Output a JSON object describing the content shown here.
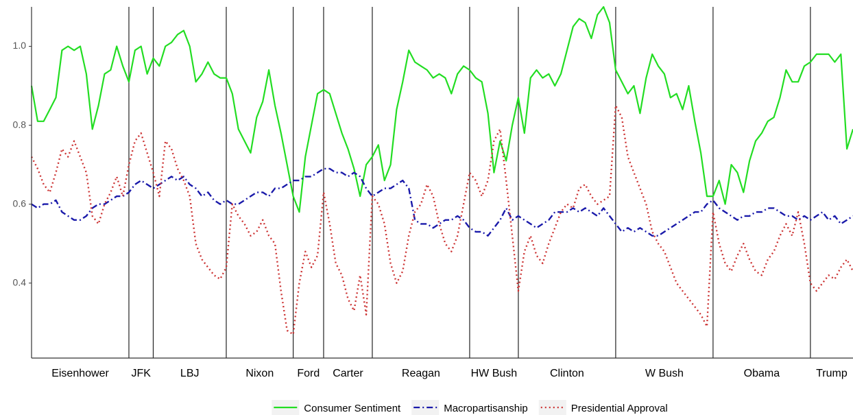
{
  "chart_data": {
    "type": "line",
    "categories": [
      null,
      null,
      null,
      null,
      null,
      null,
      null,
      null,
      null,
      null,
      null,
      null,
      null,
      null,
      null,
      null,
      null,
      null,
      null,
      null,
      null,
      null,
      null,
      null,
      null,
      null,
      null,
      null,
      null,
      null,
      null,
      null,
      null,
      null,
      null,
      null,
      null,
      null,
      null,
      null,
      null,
      null,
      null,
      null,
      null,
      null,
      null,
      null,
      null,
      null,
      null,
      null,
      null,
      null,
      null,
      null,
      null,
      null,
      null,
      null,
      null,
      null,
      null,
      null,
      null,
      null,
      null,
      null,
      null,
      null,
      null,
      null,
      null,
      null,
      null,
      null,
      null,
      null,
      null,
      null,
      null,
      null,
      null,
      null,
      null,
      null,
      null,
      null,
      null,
      null,
      null,
      null,
      null,
      null,
      null,
      null,
      null,
      null,
      null,
      null,
      null,
      null,
      null,
      null,
      null,
      null,
      null,
      null,
      null,
      null,
      null,
      null,
      null,
      null,
      null,
      null,
      null,
      null,
      null,
      null,
      null,
      null,
      null,
      null,
      null,
      null,
      null,
      null,
      null,
      null,
      null,
      null,
      null,
      null,
      null,
      null
    ],
    "eras": [
      {
        "name": "Eisenhower",
        "start": 0
      },
      {
        "name": "JFK",
        "start": 16
      },
      {
        "name": "LBJ",
        "start": 20
      },
      {
        "name": "Nixon",
        "start": 32
      },
      {
        "name": "Ford",
        "start": 43
      },
      {
        "name": "Carter",
        "start": 48
      },
      {
        "name": "Reagan",
        "start": 56
      },
      {
        "name": "HW Bush",
        "start": 72
      },
      {
        "name": "Clinton",
        "start": 80
      },
      {
        "name": "W Bush",
        "start": 96
      },
      {
        "name": "Obama",
        "start": 112
      },
      {
        "name": "Trump",
        "start": 128
      }
    ],
    "ylim": [
      0.21,
      1.1
    ],
    "yticks": [
      0.4,
      0.6,
      0.8,
      {
        "value": 1.0,
        "label": "1.0"
      }
    ],
    "legend": "bottom",
    "series": [
      {
        "name": "Consumer Sentiment",
        "color": "#22dd22",
        "linestyle": "solid",
        "values": [
          0.9,
          0.81,
          0.81,
          0.84,
          0.87,
          0.99,
          1.0,
          0.99,
          1.0,
          0.93,
          0.79,
          0.85,
          0.93,
          0.94,
          1.0,
          0.95,
          0.91,
          0.99,
          1.0,
          0.93,
          0.97,
          0.95,
          1.0,
          1.01,
          1.03,
          1.04,
          1.0,
          0.91,
          0.93,
          0.96,
          0.93,
          0.92,
          0.92,
          0.88,
          0.79,
          0.76,
          0.73,
          0.82,
          0.86,
          0.94,
          0.85,
          0.78,
          0.7,
          0.62,
          0.58,
          0.72,
          0.8,
          0.88,
          0.89,
          0.88,
          0.83,
          0.78,
          0.74,
          0.69,
          0.62,
          0.7,
          0.72,
          0.75,
          0.66,
          0.7,
          0.84,
          0.91,
          0.99,
          0.96,
          0.95,
          0.94,
          0.92,
          0.93,
          0.92,
          0.88,
          0.93,
          0.95,
          0.94,
          0.92,
          0.91,
          0.83,
          0.68,
          0.76,
          0.71,
          0.8,
          0.87,
          0.78,
          0.92,
          0.94,
          0.92,
          0.93,
          0.9,
          0.93,
          0.99,
          1.05,
          1.07,
          1.06,
          1.02,
          1.08,
          1.1,
          1.06,
          0.94,
          0.91,
          0.88,
          0.9,
          0.83,
          0.92,
          0.98,
          0.95,
          0.93,
          0.87,
          0.88,
          0.84,
          0.9,
          0.81,
          0.73,
          0.62,
          0.62,
          0.66,
          0.6,
          0.7,
          0.68,
          0.63,
          0.71,
          0.76,
          0.78,
          0.81,
          0.82,
          0.87,
          0.94,
          0.91,
          0.91,
          0.95,
          0.96,
          0.98,
          0.98,
          0.98,
          0.96,
          0.98,
          0.74,
          0.79
        ]
      },
      {
        "name": "Macropartisanship",
        "color": "#1a1aaa",
        "linestyle": "dashdot",
        "values": [
          0.6,
          0.59,
          0.6,
          0.6,
          0.61,
          0.58,
          0.57,
          0.56,
          0.56,
          0.57,
          0.59,
          0.6,
          0.6,
          0.61,
          0.62,
          0.62,
          0.63,
          0.65,
          0.66,
          0.65,
          0.64,
          0.65,
          0.66,
          0.67,
          0.66,
          0.67,
          0.65,
          0.64,
          0.62,
          0.63,
          0.61,
          0.6,
          0.61,
          0.6,
          0.6,
          0.61,
          0.62,
          0.63,
          0.63,
          0.62,
          0.64,
          0.64,
          0.65,
          0.66,
          0.66,
          0.67,
          0.67,
          0.68,
          0.69,
          0.69,
          0.68,
          0.68,
          0.67,
          0.68,
          0.67,
          0.64,
          0.62,
          0.63,
          0.64,
          0.64,
          0.65,
          0.66,
          0.64,
          0.56,
          0.55,
          0.55,
          0.54,
          0.55,
          0.56,
          0.56,
          0.57,
          0.56,
          0.54,
          0.53,
          0.53,
          0.52,
          0.54,
          0.56,
          0.59,
          0.56,
          0.57,
          0.56,
          0.55,
          0.54,
          0.55,
          0.56,
          0.58,
          0.58,
          0.58,
          0.59,
          0.58,
          0.59,
          0.58,
          0.57,
          0.59,
          0.57,
          0.55,
          0.53,
          0.54,
          0.53,
          0.54,
          0.53,
          0.52,
          0.52,
          0.53,
          0.54,
          0.55,
          0.56,
          0.57,
          0.58,
          0.58,
          0.6,
          0.61,
          0.59,
          0.58,
          0.57,
          0.56,
          0.57,
          0.57,
          0.58,
          0.58,
          0.59,
          0.59,
          0.58,
          0.57,
          0.57,
          0.56,
          0.57,
          0.56,
          0.57,
          0.58,
          0.56,
          0.57,
          0.55,
          0.56,
          0.57
        ]
      },
      {
        "name": "Presidential Approval",
        "color": "#cc3333",
        "linestyle": "dotted",
        "values": [
          0.72,
          0.69,
          0.65,
          0.63,
          0.68,
          0.74,
          0.72,
          0.76,
          0.72,
          0.68,
          0.57,
          0.55,
          0.6,
          0.63,
          0.67,
          0.62,
          0.7,
          0.76,
          0.78,
          0.73,
          0.68,
          0.62,
          0.76,
          0.74,
          0.69,
          0.66,
          0.62,
          0.5,
          0.46,
          0.44,
          0.42,
          0.41,
          0.44,
          0.6,
          0.57,
          0.55,
          0.52,
          0.53,
          0.56,
          0.52,
          0.5,
          0.38,
          0.28,
          0.27,
          0.4,
          0.48,
          0.44,
          0.47,
          0.63,
          0.55,
          0.45,
          0.42,
          0.36,
          0.33,
          0.42,
          0.32,
          0.62,
          0.6,
          0.55,
          0.45,
          0.4,
          0.43,
          0.52,
          0.58,
          0.6,
          0.65,
          0.62,
          0.55,
          0.5,
          0.48,
          0.52,
          0.6,
          0.68,
          0.66,
          0.62,
          0.66,
          0.76,
          0.79,
          0.66,
          0.52,
          0.38,
          0.48,
          0.52,
          0.47,
          0.45,
          0.5,
          0.54,
          0.58,
          0.6,
          0.59,
          0.64,
          0.65,
          0.62,
          0.6,
          0.61,
          0.62,
          0.85,
          0.82,
          0.72,
          0.68,
          0.64,
          0.6,
          0.53,
          0.5,
          0.48,
          0.44,
          0.4,
          0.38,
          0.36,
          0.34,
          0.32,
          0.29,
          0.58,
          0.5,
          0.45,
          0.43,
          0.47,
          0.5,
          0.46,
          0.43,
          0.42,
          0.46,
          0.48,
          0.52,
          0.55,
          0.52,
          0.58,
          0.5,
          0.4,
          0.38,
          0.4,
          0.42,
          0.41,
          0.44,
          0.46,
          0.43
        ]
      }
    ]
  }
}
